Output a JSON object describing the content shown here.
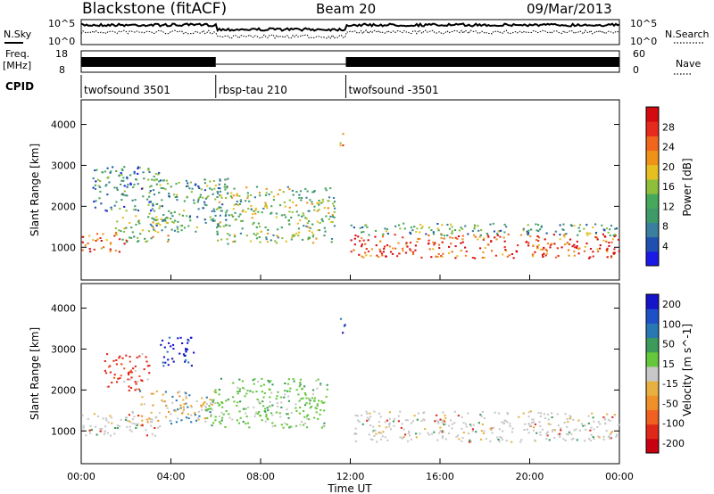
{
  "header": {
    "station": "Blackstone (fitACF)",
    "beam": "Beam 20",
    "date": "09/Mar/2013"
  },
  "summary_panels": {
    "nsky_label": "N.Sky",
    "nsearch_label": "N.Search",
    "freq_label": "Freq.",
    "freq_unit": "[MHz]",
    "nave_label": "Nave",
    "cpid_label": "CPID",
    "noise_ticks_left": [
      "10^5",
      "10^0"
    ],
    "noise_ticks_right": [
      "10^5",
      "10^0"
    ],
    "freq_ticks": [
      "18",
      "8"
    ],
    "nave_ticks": [
      "60",
      "0"
    ],
    "cpid_segments": [
      {
        "label": "twofsound 3501",
        "start_h": 0,
        "end_h": 6
      },
      {
        "label": "rbsp-tau 210",
        "start_h": 6,
        "end_h": 11.8
      },
      {
        "label": "twofsound -3501",
        "start_h": 11.8,
        "end_h": 24
      }
    ]
  },
  "chart_data": [
    {
      "type": "heatmap",
      "name": "power",
      "xlabel": "",
      "ylabel": "Slant Range [km]",
      "xlim_h": [
        0,
        24
      ],
      "ylim": [
        200,
        4600
      ],
      "yticks": [
        1000,
        2000,
        3000,
        4000
      ],
      "colorbar": {
        "label": "Power [dB]",
        "ticks": [
          28,
          24,
          20,
          16,
          12,
          8,
          4
        ],
        "range": [
          0,
          32
        ],
        "colors": [
          "#1a1ae6",
          "#1f4fb0",
          "#3a7fa0",
          "#3f9a6a",
          "#46a85a",
          "#8fbf3a",
          "#e6c020",
          "#ee9218",
          "#f0661c",
          "#e62a1c",
          "#d40a10"
        ]
      },
      "echo_regions": [
        {
          "t0": 0.0,
          "t1": 2.0,
          "r0": 900,
          "r1": 1350,
          "level": 0.75
        },
        {
          "t0": 1.5,
          "t1": 4.0,
          "r0": 1150,
          "r1": 1800,
          "level": 0.5
        },
        {
          "t0": 0.5,
          "t1": 3.5,
          "r0": 1900,
          "r1": 3000,
          "level": 0.3
        },
        {
          "t0": 3.0,
          "t1": 6.5,
          "r0": 1400,
          "r1": 2700,
          "level": 0.35
        },
        {
          "t0": 6.0,
          "t1": 11.3,
          "r0": 1100,
          "r1": 2500,
          "level": 0.45
        },
        {
          "t0": 11.5,
          "t1": 11.8,
          "r0": 3400,
          "r1": 3800,
          "level": 0.7
        },
        {
          "t0": 12.0,
          "t1": 24.0,
          "r0": 750,
          "r1": 1350,
          "level": 0.85
        },
        {
          "t0": 12.0,
          "t1": 24.0,
          "r0": 1300,
          "r1": 1600,
          "level": 0.35
        }
      ]
    },
    {
      "type": "heatmap",
      "name": "velocity",
      "xlabel": "Time UT",
      "ylabel": "Slant Range [km]",
      "xlim_h": [
        0,
        24
      ],
      "ylim": [
        200,
        4600
      ],
      "xticks": [
        "00:00",
        "04:00",
        "08:00",
        "12:00",
        "16:00",
        "20:00",
        "00:00"
      ],
      "yticks": [
        1000,
        2000,
        3000,
        4000
      ],
      "colorbar": {
        "label": "Velocity [m s^-1]",
        "ticks": [
          200,
          100,
          50,
          15,
          -15,
          -50,
          -100,
          -200
        ],
        "colors": [
          "#1414c8",
          "#1e50c8",
          "#2878b4",
          "#3c9a5a",
          "#64c83c",
          "#c8c8c8",
          "#e8b040",
          "#f09028",
          "#f06020",
          "#e02818",
          "#c80010"
        ]
      },
      "echo_regions": [
        {
          "t0": 0.0,
          "t1": 3.5,
          "r0": 900,
          "r1": 1500,
          "class": "gs"
        },
        {
          "t0": 1.0,
          "t1": 3.0,
          "r0": 2000,
          "r1": 2900,
          "class": "away"
        },
        {
          "t0": 2.5,
          "t1": 6.0,
          "r0": 1200,
          "r1": 2000,
          "class": "mixed"
        },
        {
          "t0": 3.5,
          "t1": 5.0,
          "r0": 2600,
          "r1": 3300,
          "class": "toward"
        },
        {
          "t0": 5.5,
          "t1": 11.0,
          "r0": 1100,
          "r1": 2300,
          "class": "green"
        },
        {
          "t0": 11.5,
          "t1": 11.8,
          "r0": 3400,
          "r1": 3800,
          "class": "toward"
        },
        {
          "t0": 12.0,
          "t1": 24.0,
          "r0": 750,
          "r1": 1500,
          "class": "gs"
        }
      ]
    }
  ]
}
